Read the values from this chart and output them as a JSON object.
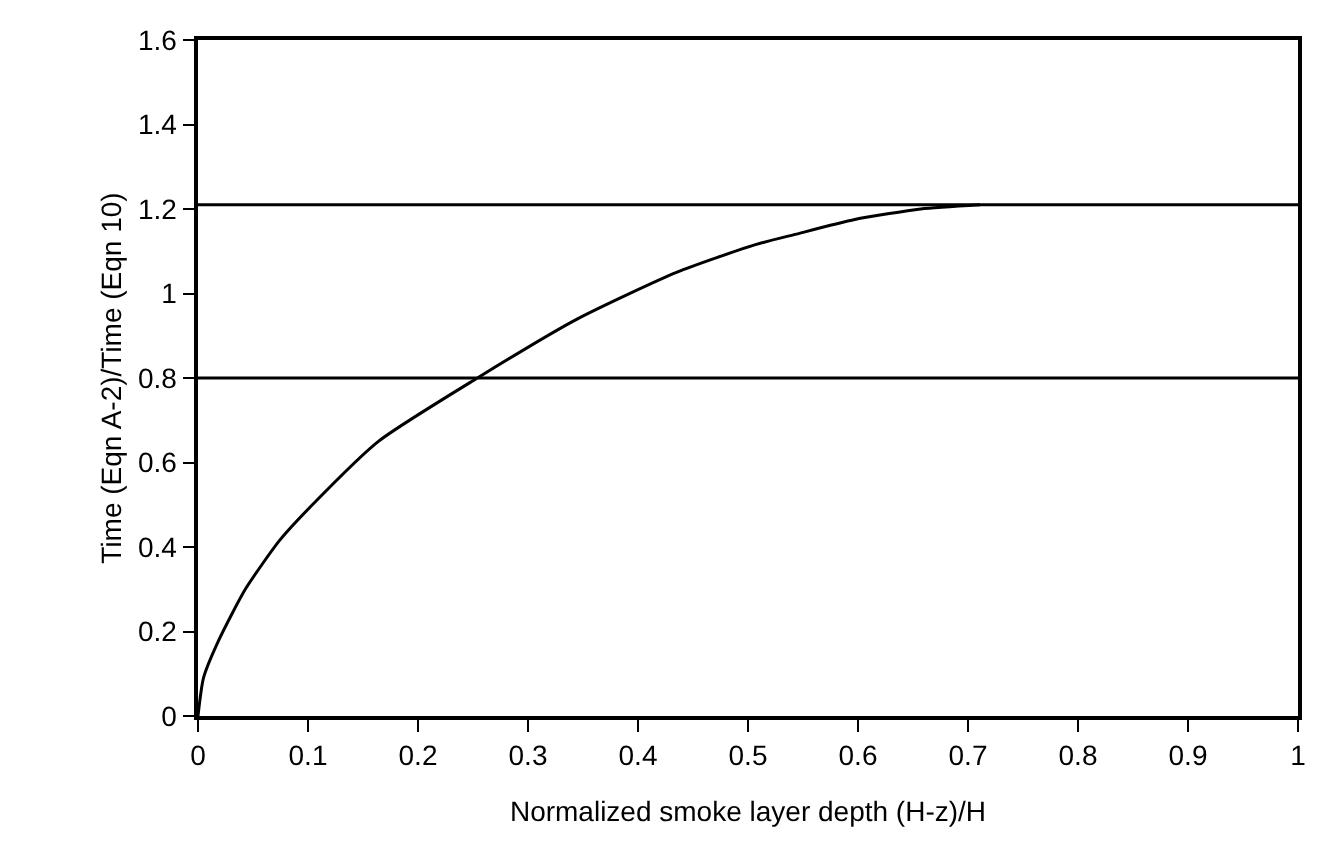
{
  "chart_data": {
    "type": "line",
    "xlabel": "Normalized smoke layer depth (H-z)/H",
    "ylabel": "Time (Eqn A-2)/Time (Eqn 10)",
    "x": [
      0,
      0.005,
      0.019,
      0.043,
      0.074,
      0.104,
      0.164,
      0.254,
      0.345,
      0.435,
      0.506,
      0.543,
      0.597,
      0.657,
      0.711
    ],
    "series": [
      {
        "color": "#000000",
        "values": [
          0,
          0.09,
          0.18,
          0.3,
          0.415,
          0.5,
          0.65,
          0.8,
          0.94,
          1.05,
          1.115,
          1.14,
          1.175,
          1.2,
          1.21
        ]
      }
    ],
    "xlim": [
      0,
      1
    ],
    "xticks": [
      0,
      0.1,
      0.2,
      0.3,
      0.4,
      0.5,
      0.6,
      0.7,
      0.8,
      0.9,
      1
    ],
    "ylim": [
      0,
      1.6
    ],
    "yticks": [
      0,
      0.2,
      0.4,
      0.6,
      0.8,
      1,
      1.2,
      1.4,
      1.6
    ],
    "ref_lines": [
      {
        "axis": "y",
        "value": 1.21,
        "color": "#000000"
      },
      {
        "axis": "y",
        "value": 0.8,
        "color": "#000000"
      }
    ],
    "grid": false,
    "marker": "none",
    "line_style": "solid"
  }
}
